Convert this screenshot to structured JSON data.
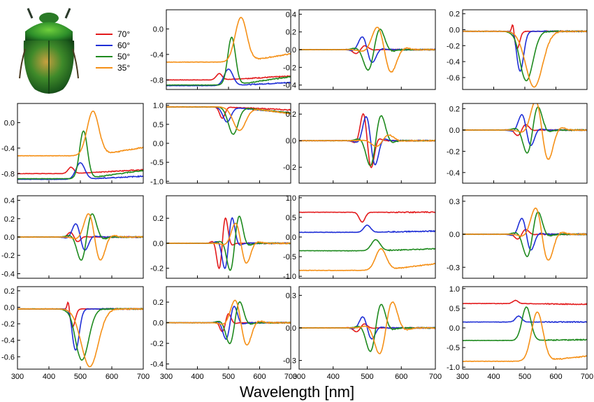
{
  "figure": {
    "xlabel": "Wavelength  [nm]",
    "photo_subject": "green scarab beetle (dorsal view)"
  },
  "legend": [
    {
      "label": "70°",
      "color": "#e31a1c"
    },
    {
      "label": "60°",
      "color": "#1f2fd6"
    },
    {
      "label": "50°",
      "color": "#1e8a1e"
    },
    {
      "label": "35°",
      "color": "#f59017"
    }
  ],
  "chart_data": [
    {
      "id": "r0c1",
      "type": "line",
      "xlim": [
        300,
        700
      ],
      "ylim": [
        -0.95,
        0.3
      ],
      "yticks": [
        "0.0",
        "-0.4",
        "-0.8"
      ],
      "ytick_vals": [
        0,
        -0.4,
        -0.8
      ],
      "xticks": [],
      "series": [
        {
          "name": "70°",
          "kind": "step",
          "pre": -0.8,
          "post": -0.78,
          "pos": 470,
          "w": 6,
          "bump": 0.1,
          "end": -0.74
        },
        {
          "name": "60°",
          "kind": "step",
          "pre": -0.89,
          "post": -0.89,
          "pos": 500,
          "w": 9,
          "bump": 0.26,
          "end": -0.84
        },
        {
          "name": "50°",
          "kind": "step",
          "pre": -0.88,
          "post": -0.84,
          "pos": 510,
          "w": 8,
          "bump": 0.75,
          "end": -0.75
        },
        {
          "name": "35°",
          "kind": "step",
          "pre": -0.52,
          "post": -0.55,
          "pos": 540,
          "w": 12,
          "bump": 0.7,
          "end": -0.39
        }
      ]
    },
    {
      "id": "r0c2",
      "type": "line",
      "xlim": [
        300,
        700
      ],
      "ylim": [
        -0.45,
        0.45
      ],
      "yticks": [
        "0.4",
        "0.2",
        "0.0",
        "-0.2",
        "-0.4"
      ],
      "ytick_vals": [
        0.4,
        0.2,
        0,
        -0.2,
        -0.4
      ],
      "xticks": [],
      "series": [
        {
          "name": "70°",
          "kind": "osc",
          "center": 480,
          "amp": 0.06,
          "width": 18,
          "sign": 1
        },
        {
          "name": "60°",
          "kind": "osc",
          "center": 500,
          "amp": 0.2,
          "width": 20,
          "sign": -1
        },
        {
          "name": "50°",
          "kind": "osc",
          "center": 520,
          "amp": 0.32,
          "width": 24,
          "sign": 1
        },
        {
          "name": "35°",
          "kind": "osc",
          "center": 550,
          "amp": 0.35,
          "width": 28,
          "sign": -1
        }
      ]
    },
    {
      "id": "r0c3",
      "type": "line",
      "xlim": [
        300,
        700
      ],
      "ylim": [
        -0.75,
        0.25
      ],
      "yticks": [
        "0.2",
        "0.0",
        "-0.2",
        "-0.4",
        "-0.6"
      ],
      "ytick_vals": [
        0.2,
        0,
        -0.2,
        -0.4,
        -0.6
      ],
      "xticks": [],
      "series": [
        {
          "name": "70°",
          "kind": "dip",
          "center": 475,
          "amp": 0.22,
          "width": 12,
          "pos_side": 0.14
        },
        {
          "name": "60°",
          "kind": "dip",
          "center": 485,
          "amp": 0.5,
          "width": 16,
          "pos_side": 0.05
        },
        {
          "name": "50°",
          "kind": "dip",
          "center": 505,
          "amp": 0.62,
          "width": 30,
          "pos_side": 0.03
        },
        {
          "name": "35°",
          "kind": "dip",
          "center": 530,
          "amp": 0.7,
          "width": 38,
          "pos_side": 0.0
        }
      ]
    },
    {
      "id": "r1c0",
      "type": "line",
      "xlim": [
        300,
        700
      ],
      "ylim": [
        -0.95,
        0.3
      ],
      "yticks": [
        "0.0",
        "-0.4",
        "-0.8"
      ],
      "ytick_vals": [
        0,
        -0.4,
        -0.8
      ],
      "xticks": [],
      "series": [
        {
          "name": "70°",
          "kind": "step",
          "pre": -0.8,
          "post": -0.78,
          "pos": 470,
          "w": 6,
          "bump": 0.1,
          "end": -0.74
        },
        {
          "name": "60°",
          "kind": "step",
          "pre": -0.89,
          "post": -0.89,
          "pos": 500,
          "w": 9,
          "bump": 0.26,
          "end": -0.84
        },
        {
          "name": "50°",
          "kind": "step",
          "pre": -0.88,
          "post": -0.84,
          "pos": 510,
          "w": 8,
          "bump": 0.75,
          "end": -0.75
        },
        {
          "name": "35°",
          "kind": "step",
          "pre": -0.52,
          "post": -0.55,
          "pos": 540,
          "w": 12,
          "bump": 0.7,
          "end": -0.39
        }
      ]
    },
    {
      "id": "r1c1",
      "type": "line",
      "xlim": [
        300,
        700
      ],
      "ylim": [
        -1.05,
        1.05
      ],
      "yticks": [
        "1.0",
        "0.5",
        "0.0",
        "-0.5",
        "-1.0"
      ],
      "ytick_vals": [
        1,
        0.5,
        0,
        -0.5,
        -1
      ],
      "xticks": [],
      "series": [
        {
          "name": "70°",
          "kind": "dipflat",
          "base": 0.96,
          "center": 480,
          "amp": 0.3,
          "width": 12,
          "end": 0.88
        },
        {
          "name": "60°",
          "kind": "dipflat",
          "base": 0.96,
          "center": 495,
          "amp": 0.4,
          "width": 18,
          "end": 0.8
        },
        {
          "name": "50°",
          "kind": "dipflat",
          "base": 0.96,
          "center": 515,
          "amp": 0.72,
          "width": 22,
          "end": 0.8
        },
        {
          "name": "35°",
          "kind": "dipflat",
          "base": 0.96,
          "center": 535,
          "amp": 0.62,
          "width": 28,
          "end": 0.78
        }
      ]
    },
    {
      "id": "r1c2",
      "type": "line",
      "xlim": [
        300,
        700
      ],
      "ylim": [
        -0.32,
        0.28
      ],
      "yticks": [
        "0.2",
        "0.0",
        "-0.2"
      ],
      "ytick_vals": [
        0.2,
        0,
        -0.2
      ],
      "xticks": [],
      "series": [
        {
          "name": "70°",
          "kind": "osc",
          "center": 500,
          "amp": 0.28,
          "width": 16,
          "sign": -1
        },
        {
          "name": "60°",
          "kind": "osc",
          "center": 510,
          "amp": 0.25,
          "width": 18,
          "sign": -1
        },
        {
          "name": "50°",
          "kind": "osc",
          "center": 525,
          "amp": 0.26,
          "width": 22,
          "sign": 1
        },
        {
          "name": "35°",
          "kind": "osc",
          "center": 545,
          "amp": 0.06,
          "width": 25,
          "sign": 1
        }
      ]
    },
    {
      "id": "r1c3",
      "type": "line",
      "xlim": [
        300,
        700
      ],
      "ylim": [
        -0.5,
        0.25
      ],
      "yticks": [
        "0.2",
        "0.0",
        "-0.2",
        "-0.4"
      ],
      "ytick_vals": [
        0.2,
        0,
        -0.2,
        -0.4
      ],
      "xticks": [],
      "series": [
        {
          "name": "70°",
          "kind": "osc",
          "center": 490,
          "amp": 0.07,
          "width": 18,
          "sign": 1
        },
        {
          "name": "60°",
          "kind": "osc",
          "center": 505,
          "amp": 0.2,
          "width": 20,
          "sign": -1
        },
        {
          "name": "50°",
          "kind": "osc",
          "center": 525,
          "amp": 0.3,
          "width": 24,
          "sign": 1
        },
        {
          "name": "35°",
          "kind": "osc",
          "center": 555,
          "amp": 0.38,
          "width": 28,
          "sign": -1
        }
      ]
    },
    {
      "id": "r2c0",
      "type": "line",
      "xlim": [
        300,
        700
      ],
      "ylim": [
        -0.45,
        0.45
      ],
      "yticks": [
        "0.4",
        "0.2",
        "0.0",
        "-0.2",
        "-0.4"
      ],
      "ytick_vals": [
        0.4,
        0.2,
        0,
        -0.2,
        -0.4
      ],
      "xticks": [],
      "series": [
        {
          "name": "70°",
          "kind": "osc",
          "center": 480,
          "amp": 0.07,
          "width": 16,
          "sign": -1
        },
        {
          "name": "60°",
          "kind": "osc",
          "center": 500,
          "amp": 0.2,
          "width": 20,
          "sign": -1
        },
        {
          "name": "50°",
          "kind": "osc",
          "center": 520,
          "amp": 0.35,
          "width": 24,
          "sign": 1
        },
        {
          "name": "35°",
          "kind": "osc",
          "center": 545,
          "amp": 0.35,
          "width": 26,
          "sign": -1
        }
      ]
    },
    {
      "id": "r2c1",
      "type": "line",
      "xlim": [
        300,
        700
      ],
      "ylim": [
        -0.28,
        0.38
      ],
      "yticks": [
        "0.2",
        "0.0",
        "-0.2"
      ],
      "ytick_vals": [
        0.2,
        0,
        -0.2
      ],
      "xticks": [],
      "series": [
        {
          "name": "70°",
          "kind": "osc",
          "center": 480,
          "amp": 0.28,
          "width": 14,
          "sign": 1
        },
        {
          "name": "60°",
          "kind": "osc",
          "center": 500,
          "amp": 0.28,
          "width": 16,
          "sign": 1
        },
        {
          "name": "50°",
          "kind": "osc",
          "center": 520,
          "amp": 0.3,
          "width": 20,
          "sign": 1
        },
        {
          "name": "35°",
          "kind": "osc",
          "center": 540,
          "amp": 0.22,
          "width": 24,
          "sign": -1
        }
      ]
    },
    {
      "id": "r2c2",
      "type": "line",
      "xlim": [
        300,
        700
      ],
      "ylim": [
        -1.05,
        1.05
      ],
      "yticks": [
        "1.0",
        "0.5",
        "0.0",
        "-0.5",
        "-1.0"
      ],
      "ytick_vals": [
        1,
        0.5,
        0,
        -0.5,
        -1
      ],
      "xticks": [],
      "series": [
        {
          "name": "70°",
          "kind": "dipflat",
          "base": 0.63,
          "center": 485,
          "amp": 0.25,
          "width": 12,
          "end": 0.63
        },
        {
          "name": "60°",
          "kind": "bumpflat",
          "base": 0.12,
          "center": 500,
          "amp": 0.18,
          "width": 14,
          "end": 0.15
        },
        {
          "name": "50°",
          "kind": "bumpflat",
          "base": -0.35,
          "center": 525,
          "amp": 0.28,
          "width": 18,
          "end": -0.3
        },
        {
          "name": "35°",
          "kind": "bumpflat",
          "base": -0.85,
          "center": 540,
          "amp": 0.55,
          "width": 22,
          "end": -0.68
        }
      ]
    },
    {
      "id": "r2c3",
      "type": "line",
      "xlim": [
        300,
        700
      ],
      "ylim": [
        -0.4,
        0.35
      ],
      "yticks": [
        "0.3",
        "0.0",
        "-0.3"
      ],
      "ytick_vals": [
        0.3,
        0,
        -0.3
      ],
      "xticks": [],
      "series": [
        {
          "name": "70°",
          "kind": "osc",
          "center": 490,
          "amp": 0.06,
          "width": 18,
          "sign": 1
        },
        {
          "name": "60°",
          "kind": "osc",
          "center": 505,
          "amp": 0.2,
          "width": 20,
          "sign": -1
        },
        {
          "name": "50°",
          "kind": "osc",
          "center": 525,
          "amp": 0.28,
          "width": 24,
          "sign": 1
        },
        {
          "name": "35°",
          "kind": "osc",
          "center": 555,
          "amp": 0.33,
          "width": 28,
          "sign": -1
        }
      ]
    },
    {
      "id": "r3c0",
      "type": "line",
      "xlim": [
        300,
        700
      ],
      "ylim": [
        -0.75,
        0.25
      ],
      "yticks": [
        "0.2",
        "0.0",
        "-0.2",
        "-0.4",
        "-0.6"
      ],
      "ytick_vals": [
        0.2,
        0,
        -0.2,
        -0.4,
        -0.6
      ],
      "xticks": [
        "300",
        "400",
        "500",
        "600",
        "700"
      ],
      "xtick_vals": [
        300,
        400,
        500,
        600,
        700
      ],
      "series": [
        {
          "name": "70°",
          "kind": "dip",
          "center": 475,
          "amp": 0.22,
          "width": 12,
          "pos_side": 0.14
        },
        {
          "name": "60°",
          "kind": "dip",
          "center": 485,
          "amp": 0.5,
          "width": 16,
          "pos_side": 0.05
        },
        {
          "name": "50°",
          "kind": "dip",
          "center": 505,
          "amp": 0.62,
          "width": 30,
          "pos_side": 0.03
        },
        {
          "name": "35°",
          "kind": "dip",
          "center": 530,
          "amp": 0.7,
          "width": 38,
          "pos_side": 0.0
        }
      ]
    },
    {
      "id": "r3c1",
      "type": "line",
      "xlim": [
        300,
        700
      ],
      "ylim": [
        -0.45,
        0.35
      ],
      "yticks": [
        "0.2",
        "0.0",
        "-0.2",
        "-0.4"
      ],
      "ytick_vals": [
        0.2,
        0,
        -0.2,
        -0.4
      ],
      "xticks": [
        "300",
        "400",
        "500",
        "600",
        "700"
      ],
      "xtick_vals": [
        300,
        400,
        500,
        600,
        700
      ],
      "series": [
        {
          "name": "70°",
          "kind": "osc",
          "center": 490,
          "amp": 0.12,
          "width": 14,
          "sign": 1
        },
        {
          "name": "60°",
          "kind": "osc",
          "center": 505,
          "amp": 0.22,
          "width": 18,
          "sign": 1
        },
        {
          "name": "50°",
          "kind": "osc",
          "center": 520,
          "amp": 0.28,
          "width": 22,
          "sign": 1
        },
        {
          "name": "35°",
          "kind": "osc",
          "center": 540,
          "amp": 0.3,
          "width": 26,
          "sign": -1
        }
      ]
    },
    {
      "id": "r3c2",
      "type": "line",
      "xlim": [
        300,
        700
      ],
      "ylim": [
        -0.38,
        0.38
      ],
      "yticks": [
        "0.3",
        "0.0",
        "-0.3"
      ],
      "ytick_vals": [
        0.3,
        0,
        -0.3
      ],
      "xticks": [
        "300",
        "400",
        "500",
        "600",
        "700"
      ],
      "xtick_vals": [
        300,
        400,
        500,
        600,
        700
      ],
      "series": [
        {
          "name": "70°",
          "kind": "osc",
          "center": 480,
          "amp": 0.05,
          "width": 16,
          "sign": 1
        },
        {
          "name": "60°",
          "kind": "osc",
          "center": 500,
          "amp": 0.14,
          "width": 18,
          "sign": -1
        },
        {
          "name": "50°",
          "kind": "osc",
          "center": 525,
          "amp": 0.3,
          "width": 22,
          "sign": 1
        },
        {
          "name": "35°",
          "kind": "osc",
          "center": 555,
          "amp": 0.33,
          "width": 26,
          "sign": 1
        }
      ]
    },
    {
      "id": "r3c3",
      "type": "line",
      "xlim": [
        300,
        700
      ],
      "ylim": [
        -1.05,
        1.05
      ],
      "yticks": [
        "1.0",
        "0.5",
        "0.0",
        "-0.5",
        "-1.0"
      ],
      "ytick_vals": [
        1,
        0.5,
        0,
        -0.5,
        -1
      ],
      "xticks": [
        "300",
        "400",
        "500",
        "600",
        "700"
      ],
      "xtick_vals": [
        300,
        400,
        500,
        600,
        700
      ],
      "series": [
        {
          "name": "70°",
          "kind": "bumpflat",
          "base": 0.62,
          "center": 470,
          "amp": 0.08,
          "width": 12,
          "end": 0.6
        },
        {
          "name": "60°",
          "kind": "bumpflat",
          "base": 0.15,
          "center": 480,
          "amp": 0.15,
          "width": 14,
          "end": 0.15
        },
        {
          "name": "50°",
          "kind": "bumpflat",
          "base": -0.32,
          "center": 505,
          "amp": 0.85,
          "width": 20,
          "end": -0.3
        },
        {
          "name": "35°",
          "kind": "bumpflat",
          "base": -0.85,
          "center": 540,
          "amp": 1.25,
          "width": 26,
          "end": -0.72
        }
      ]
    }
  ]
}
